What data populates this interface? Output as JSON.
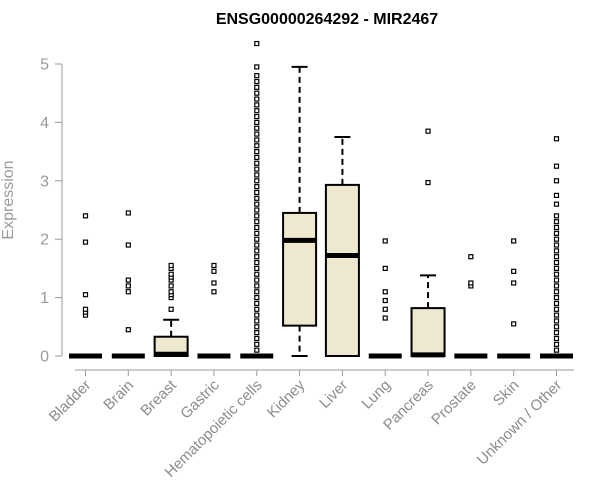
{
  "chart_data": {
    "type": "box",
    "title": "ENSG00000264292 - MIR2467",
    "xlabel": "",
    "ylabel": "Expression",
    "ylim": [
      0,
      5.5
    ],
    "yticks": [
      0,
      1,
      2,
      3,
      4,
      5
    ],
    "grid": false,
    "box_fill": "#efe8d0",
    "categories": [
      "Bladder",
      "Brain",
      "Breast",
      "Gastric",
      "Hematopoietic cells",
      "Kidney",
      "Liver",
      "Lung",
      "Pancreas",
      "Prostate",
      "Skin",
      "Unknown / Other"
    ],
    "boxes": [
      {
        "q1": 0,
        "median": 0,
        "q3": 0,
        "whisker_low": 0,
        "whisker_high": 0,
        "outliers": [
          0.7,
          0.75,
          0.8,
          1.05,
          1.95,
          2.4
        ]
      },
      {
        "q1": 0,
        "median": 0,
        "q3": 0,
        "whisker_low": 0,
        "whisker_high": 0,
        "outliers": [
          0.45,
          1.1,
          1.2,
          1.3,
          1.9,
          2.45
        ]
      },
      {
        "q1": 0,
        "median": 0.03,
        "q3": 0.33,
        "whisker_low": 0,
        "whisker_high": 0.62,
        "outliers": [
          0.8,
          1.0,
          1.05,
          1.1,
          1.2,
          1.3,
          1.35,
          1.4,
          1.5,
          1.55
        ]
      },
      {
        "q1": 0,
        "median": 0,
        "q3": 0,
        "whisker_low": 0,
        "whisker_high": 0,
        "outliers": [
          1.1,
          1.25,
          1.45,
          1.55
        ]
      },
      {
        "q1": 0,
        "median": 0,
        "q3": 0,
        "whisker_low": 0,
        "whisker_high": 0,
        "outliers": [
          0.1,
          0.2,
          0.3,
          0.4,
          0.5,
          0.6,
          0.7,
          0.8,
          0.9,
          1.0,
          1.1,
          1.2,
          1.3,
          1.4,
          1.5,
          1.6,
          1.7,
          1.8,
          1.9,
          2.0,
          2.1,
          2.2,
          2.3,
          2.4,
          2.5,
          2.6,
          2.7,
          2.8,
          2.9,
          3.0,
          3.1,
          3.2,
          3.3,
          3.4,
          3.5,
          3.6,
          3.7,
          3.8,
          3.9,
          4.0,
          4.1,
          4.2,
          4.3,
          4.4,
          4.5,
          4.6,
          4.7,
          4.8,
          4.95,
          5.35
        ]
      },
      {
        "q1": 0.52,
        "median": 1.98,
        "q3": 2.45,
        "whisker_low": 0,
        "whisker_high": 4.95,
        "outliers": []
      },
      {
        "q1": 0,
        "median": 1.72,
        "q3": 2.93,
        "whisker_low": 0,
        "whisker_high": 3.75,
        "outliers": []
      },
      {
        "q1": 0,
        "median": 0,
        "q3": 0,
        "whisker_low": 0,
        "whisker_high": 0,
        "outliers": [
          0.65,
          0.8,
          0.95,
          1.1,
          1.5,
          1.97
        ]
      },
      {
        "q1": 0,
        "median": 0.02,
        "q3": 0.82,
        "whisker_low": 0,
        "whisker_high": 1.38,
        "outliers": [
          2.97,
          3.85
        ]
      },
      {
        "q1": 0,
        "median": 0,
        "q3": 0,
        "whisker_low": 0,
        "whisker_high": 0,
        "outliers": [
          1.2,
          1.25,
          1.7
        ]
      },
      {
        "q1": 0,
        "median": 0,
        "q3": 0,
        "whisker_low": 0,
        "whisker_high": 0,
        "outliers": [
          0.55,
          1.25,
          1.45,
          1.97
        ]
      },
      {
        "q1": 0,
        "median": 0,
        "q3": 0,
        "whisker_low": 0,
        "whisker_high": 0,
        "outliers": [
          0.1,
          0.2,
          0.3,
          0.4,
          0.5,
          0.6,
          0.7,
          0.8,
          0.9,
          1.0,
          1.1,
          1.2,
          1.3,
          1.4,
          1.5,
          1.6,
          1.7,
          1.8,
          1.9,
          2.0,
          2.1,
          2.2,
          2.3,
          2.4,
          2.6,
          2.75,
          3.0,
          3.25,
          3.72
        ]
      }
    ]
  }
}
